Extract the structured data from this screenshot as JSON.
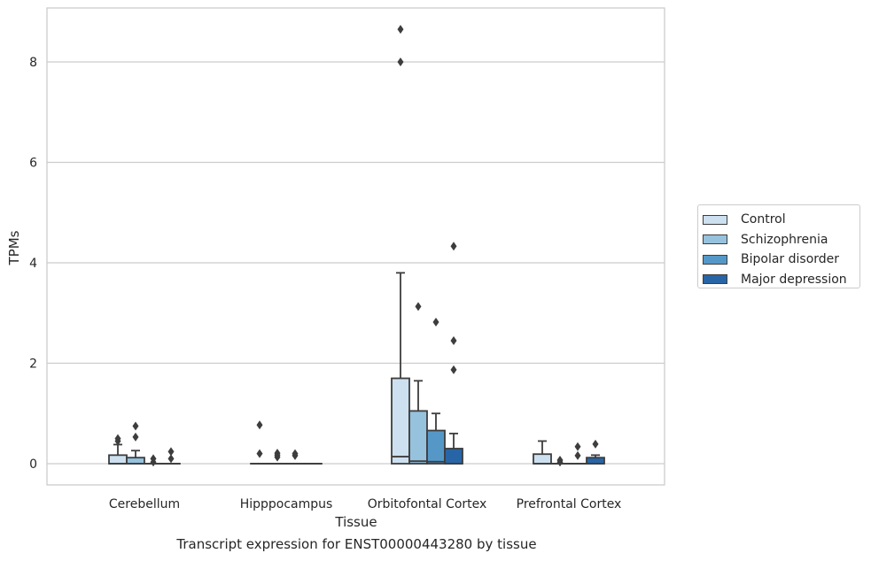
{
  "chart_data": {
    "type": "boxplot",
    "title": "Transcript expression for ENST00000443280 by tissue",
    "xlabel": "Tissue",
    "ylabel": "TPMs",
    "ylim": [
      -0.42,
      9.1
    ],
    "yticks": [
      "0",
      "2",
      "4",
      "6",
      "8"
    ],
    "grid": true,
    "legend_position": "right",
    "categories": [
      "Cerebellum",
      "Hipppocampus",
      "Orbitofontal Cortex",
      "Prefrontal Cortex"
    ],
    "series": [
      {
        "name": "Control",
        "color": "#cde0f0",
        "boxes": [
          {
            "q1": 0.0,
            "median": 0.0,
            "q3": 0.17,
            "whisker_low": 0.0,
            "whisker_high": 0.38,
            "outliers": [
              0.45,
              0.5
            ]
          },
          {
            "q1": 0.0,
            "median": 0.0,
            "q3": 0.0,
            "whisker_low": 0.0,
            "whisker_high": 0.0,
            "outliers": [
              0.2,
              0.77
            ]
          },
          {
            "q1": 0.0,
            "median": 0.14,
            "q3": 1.7,
            "whisker_low": 0.0,
            "whisker_high": 3.8,
            "outliers": [
              8.0,
              8.65
            ]
          },
          {
            "q1": 0.0,
            "median": 0.0,
            "q3": 0.19,
            "whisker_low": 0.0,
            "whisker_high": 0.45,
            "outliers": []
          }
        ]
      },
      {
        "name": "Schizophrenia",
        "color": "#97c2de",
        "boxes": [
          {
            "q1": 0.0,
            "median": 0.0,
            "q3": 0.12,
            "whisker_low": 0.0,
            "whisker_high": 0.26,
            "outliers": [
              0.53,
              0.75
            ]
          },
          {
            "q1": 0.0,
            "median": 0.0,
            "q3": 0.0,
            "whisker_low": 0.0,
            "whisker_high": 0.0,
            "outliers": [
              0.13,
              0.17,
              0.21
            ]
          },
          {
            "q1": 0.0,
            "median": 0.05,
            "q3": 1.05,
            "whisker_low": 0.0,
            "whisker_high": 1.65,
            "outliers": [
              3.13
            ]
          },
          {
            "q1": 0.0,
            "median": 0.0,
            "q3": 0.0,
            "whisker_low": 0.0,
            "whisker_high": 0.0,
            "outliers": [
              0.03,
              0.07
            ]
          }
        ]
      },
      {
        "name": "Bipolar disorder",
        "color": "#5598c8",
        "boxes": [
          {
            "q1": 0.0,
            "median": 0.0,
            "q3": 0.0,
            "whisker_low": 0.0,
            "whisker_high": 0.0,
            "outliers": [
              0.03,
              0.1
            ]
          },
          {
            "q1": 0.0,
            "median": 0.0,
            "q3": 0.0,
            "whisker_low": 0.0,
            "whisker_high": 0.0,
            "outliers": [
              0.16,
              0.2
            ]
          },
          {
            "q1": 0.0,
            "median": 0.04,
            "q3": 0.66,
            "whisker_low": 0.0,
            "whisker_high": 1.0,
            "outliers": [
              2.82
            ]
          },
          {
            "q1": 0.0,
            "median": 0.0,
            "q3": 0.0,
            "whisker_low": 0.0,
            "whisker_high": 0.0,
            "outliers": [
              0.16,
              0.34
            ]
          }
        ]
      },
      {
        "name": "Major depression",
        "color": "#2865a6",
        "boxes": [
          {
            "q1": 0.0,
            "median": 0.0,
            "q3": 0.0,
            "whisker_low": 0.0,
            "whisker_high": 0.0,
            "outliers": [
              0.1,
              0.24
            ]
          },
          {
            "q1": 0.0,
            "median": 0.0,
            "q3": 0.0,
            "whisker_low": 0.0,
            "whisker_high": 0.0,
            "outliers": []
          },
          {
            "q1": 0.0,
            "median": 0.0,
            "q3": 0.3,
            "whisker_low": 0.0,
            "whisker_high": 0.6,
            "outliers": [
              1.87,
              2.45,
              4.33
            ]
          },
          {
            "q1": 0.0,
            "median": 0.0,
            "q3": 0.12,
            "whisker_low": 0.0,
            "whisker_high": 0.17,
            "outliers": [
              0.39
            ]
          }
        ]
      }
    ]
  }
}
